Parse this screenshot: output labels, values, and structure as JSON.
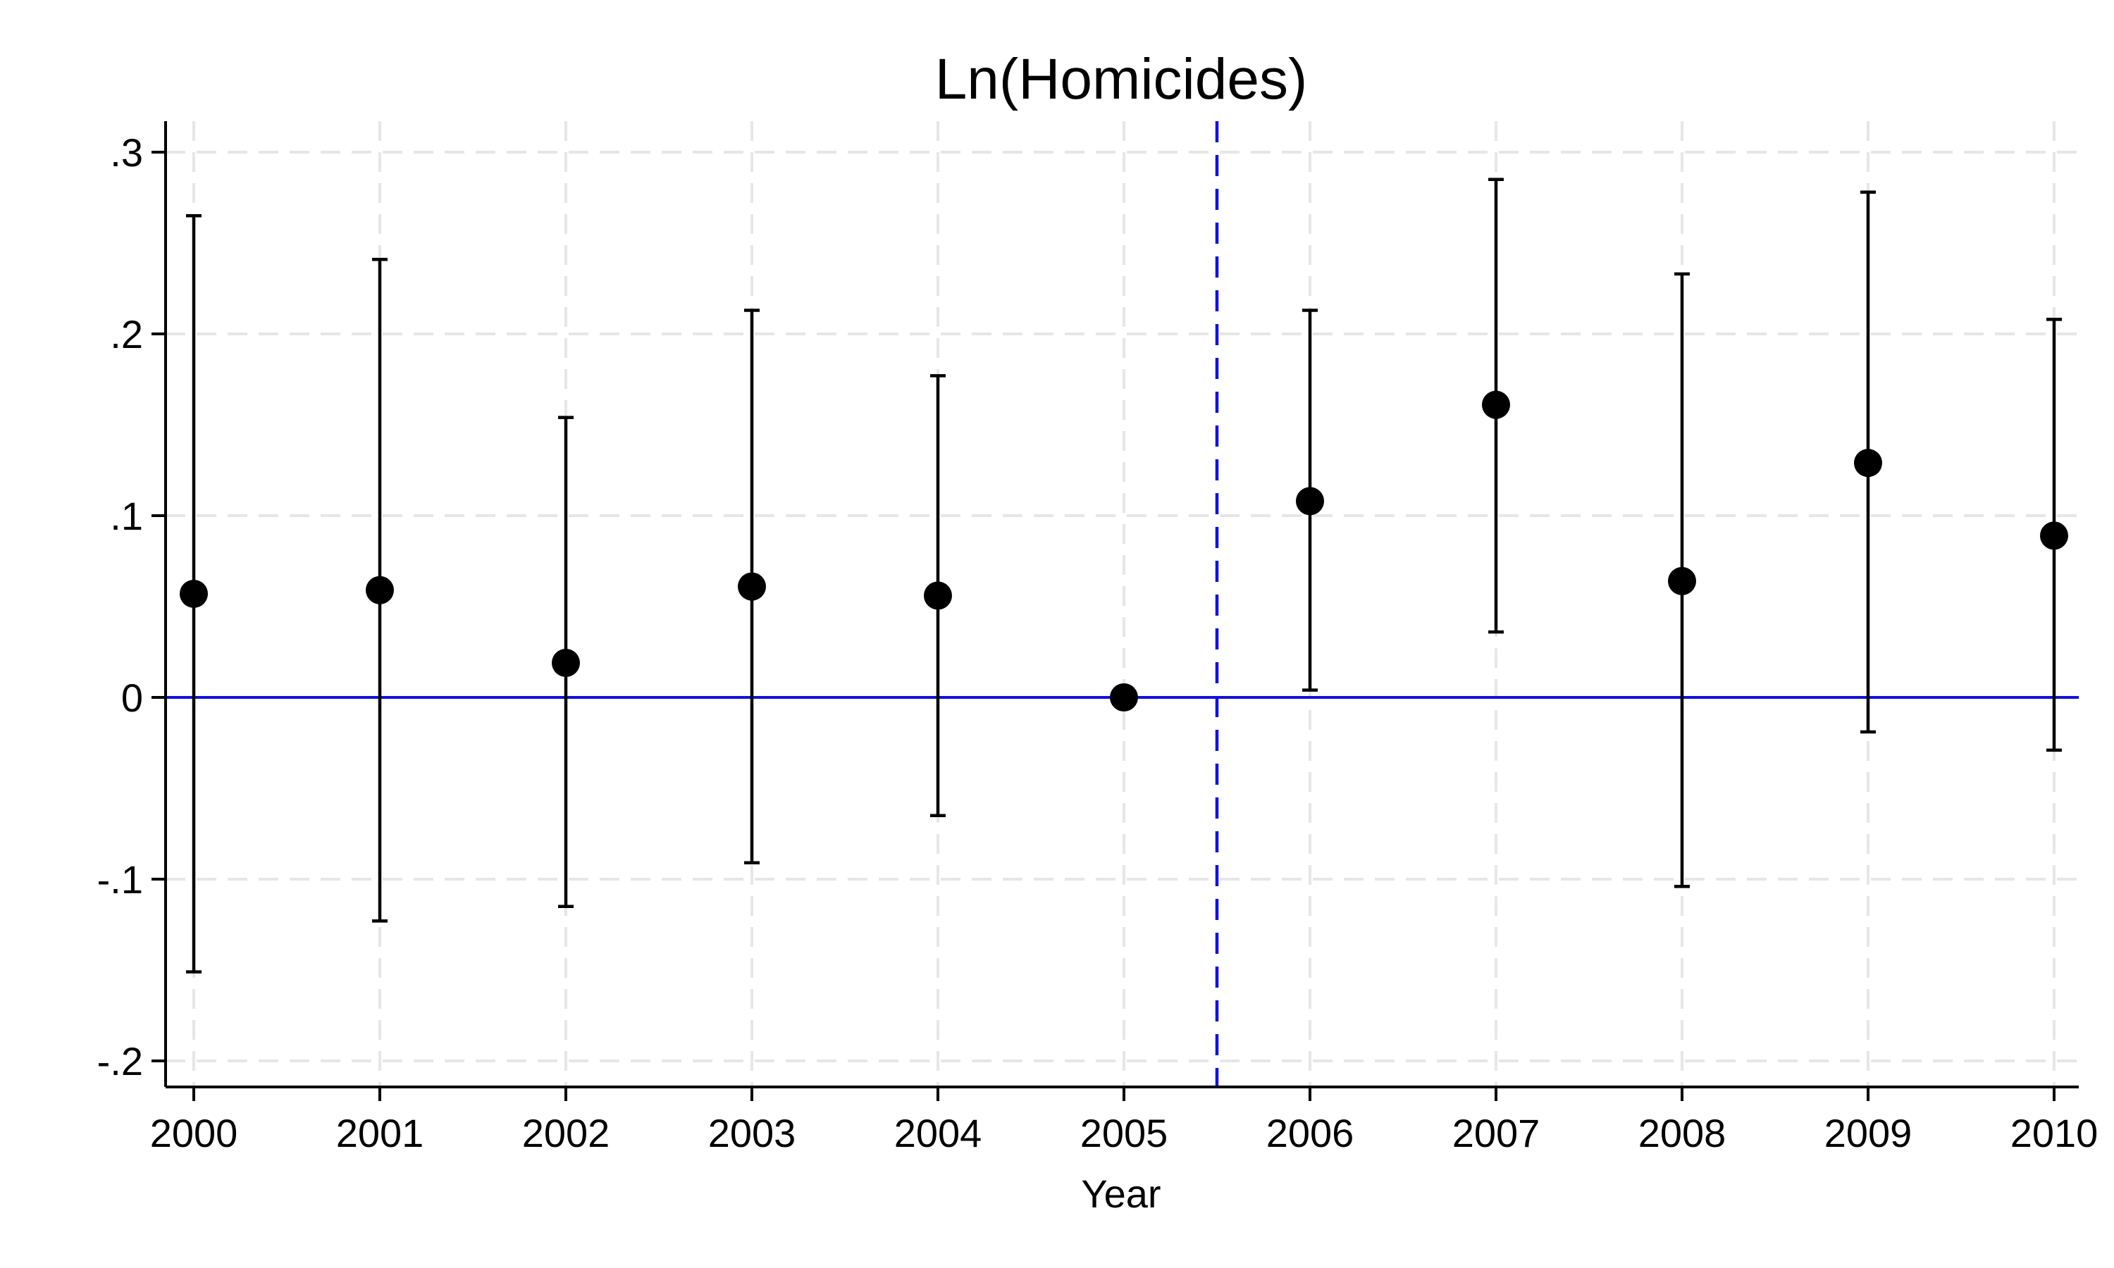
{
  "chart_data": {
    "type": "scatter",
    "title": "Ln(Homicides)",
    "xlabel": "Year",
    "ylabel": "",
    "x": [
      2000,
      2001,
      2002,
      2003,
      2004,
      2005,
      2006,
      2007,
      2008,
      2009,
      2010
    ],
    "series": [
      {
        "values": [
          0.057,
          0.059,
          0.019,
          0.061,
          0.056,
          0.0,
          0.108,
          0.161,
          0.064,
          0.129,
          0.089
        ],
        "ci_low": [
          -0.151,
          -0.123,
          -0.115,
          -0.091,
          -0.065,
          0.0,
          0.004,
          0.036,
          -0.104,
          -0.019,
          -0.029
        ],
        "ci_high": [
          0.265,
          0.241,
          0.154,
          0.213,
          0.177,
          0.0,
          0.213,
          0.285,
          0.233,
          0.278,
          0.208
        ]
      }
    ],
    "xticks": [
      "2000",
      "2001",
      "2002",
      "2003",
      "2004",
      "2005",
      "2006",
      "2007",
      "2008",
      "2009",
      "2010"
    ],
    "yticks": [
      {
        "value": 0.3,
        "label": ".3"
      },
      {
        "value": 0.2,
        "label": ".2"
      },
      {
        "value": 0.1,
        "label": ".1"
      },
      {
        "value": 0.0,
        "label": "0"
      },
      {
        "value": -0.1,
        "label": "-.1"
      },
      {
        "value": -0.2,
        "label": "-.2"
      }
    ],
    "xlim": [
      2000,
      2010
    ],
    "ylim": [
      -0.2,
      0.3
    ],
    "reference_lines": {
      "horizontal": 0,
      "vertical": 2005.5
    },
    "grid": true,
    "colors": {
      "marker": "#000000",
      "reference": "#1010e0",
      "grid": "#e6e6e6"
    }
  }
}
